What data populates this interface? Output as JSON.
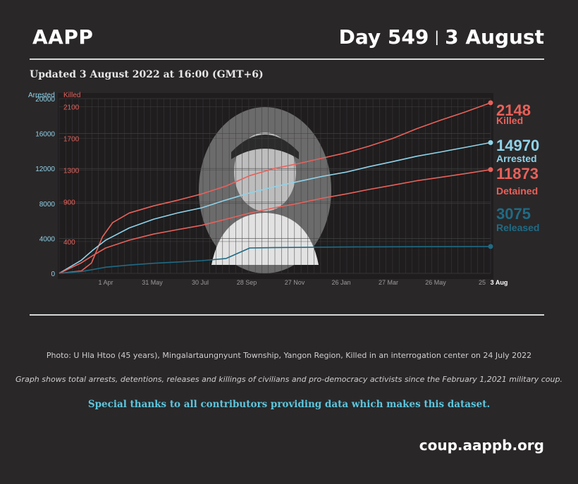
{
  "header": {
    "brand": "AAPP",
    "day": "Day 549",
    "separator": "|",
    "date": "3 August"
  },
  "updated": "Updated 3 August 2022 at 16:00 (GMT+6)",
  "colors": {
    "killed": "#e8615a",
    "arrested": "#8fd3ea",
    "detained": "#e8615a",
    "released": "#1f6b85",
    "background": "#2a2728"
  },
  "chart_data": {
    "type": "line",
    "x_ticks": [
      "1 Apr",
      "31 May",
      "30 Jul",
      "28 Sep",
      "27 Nov",
      "26 Jan",
      "27 Mar",
      "26 May",
      "25",
      "3 Aug"
    ],
    "axis_left": {
      "label": "Arrested",
      "ticks": [
        0,
        4000,
        8000,
        12000,
        16000,
        20000
      ],
      "ylim": [
        0,
        20000
      ]
    },
    "axis_right": {
      "label": "Killed",
      "ticks": [
        400,
        900,
        1300,
        1700,
        2100
      ],
      "ylim": [
        0,
        2200
      ]
    },
    "x_start": "2021-02-01",
    "series": [
      {
        "name": "Killed",
        "axis": "killed",
        "final_value": "2148",
        "label": "Killed",
        "x": [
          "2021-02-01",
          "2021-03-01",
          "2021-03-14",
          "2021-03-28",
          "2021-04-10",
          "2021-05-01",
          "2021-06-01",
          "2021-07-01",
          "2021-08-01",
          "2021-09-01",
          "2021-10-01",
          "2021-11-01",
          "2021-12-01",
          "2022-01-01",
          "2022-02-01",
          "2022-03-01",
          "2022-04-01",
          "2022-05-01",
          "2022-06-01",
          "2022-07-01",
          "2022-08-03"
        ],
        "y": [
          0,
          30,
          130,
          460,
          640,
          760,
          850,
          920,
          1000,
          1100,
          1230,
          1320,
          1380,
          1450,
          1520,
          1600,
          1700,
          1820,
          1930,
          2030,
          2148
        ]
      },
      {
        "name": "Arrested",
        "axis": "arrested",
        "final_value": "14970",
        "label": "Arrested",
        "x": [
          "2021-02-01",
          "2021-03-01",
          "2021-03-15",
          "2021-04-01",
          "2021-05-01",
          "2021-06-01",
          "2021-07-01",
          "2021-08-01",
          "2021-09-01",
          "2021-10-01",
          "2021-11-01",
          "2021-12-01",
          "2022-01-01",
          "2022-02-01",
          "2022-03-01",
          "2022-04-01",
          "2022-05-01",
          "2022-06-01",
          "2022-07-01",
          "2022-08-03"
        ],
        "y": [
          0,
          1500,
          2600,
          3800,
          5200,
          6200,
          6900,
          7500,
          8400,
          9200,
          9900,
          10500,
          11100,
          11600,
          12200,
          12800,
          13400,
          13900,
          14400,
          14970
        ]
      },
      {
        "name": "Detained",
        "axis": "arrested",
        "final_value": "11873",
        "label": "Detained",
        "x": [
          "2021-02-01",
          "2021-03-01",
          "2021-03-15",
          "2021-04-01",
          "2021-05-01",
          "2021-06-01",
          "2021-07-01",
          "2021-08-01",
          "2021-09-01",
          "2021-10-01",
          "2021-11-01",
          "2021-12-01",
          "2022-01-01",
          "2022-02-01",
          "2022-03-01",
          "2022-04-01",
          "2022-05-01",
          "2022-06-01",
          "2022-07-01",
          "2022-08-03"
        ],
        "y": [
          0,
          1200,
          2000,
          2900,
          3800,
          4500,
          5000,
          5500,
          6200,
          6900,
          7500,
          8000,
          8600,
          9100,
          9600,
          10100,
          10600,
          11000,
          11400,
          11873
        ]
      },
      {
        "name": "Released",
        "axis": "arrested",
        "final_value": "3075",
        "label": "Released",
        "x": [
          "2021-02-01",
          "2021-03-01",
          "2021-04-01",
          "2021-05-01",
          "2021-06-01",
          "2021-07-01",
          "2021-08-01",
          "2021-09-01",
          "2021-10-01",
          "2021-11-01",
          "2022-01-01",
          "2022-03-01",
          "2022-05-01",
          "2022-08-03"
        ],
        "y": [
          0,
          200,
          700,
          950,
          1150,
          1300,
          1450,
          1700,
          2900,
          2950,
          3000,
          3030,
          3050,
          3075
        ]
      }
    ]
  },
  "footer": {
    "photo_credit": "Photo: U Hla Htoo (45 years), Mingalartaungnyunt Township, Yangon Region, Killed in an interrogation center on 24 July 2022",
    "graph_note": "Graph shows total arrests, detentions, releases and killings of civilians and pro-democracy activists since the February 1,2021 military coup.",
    "thanks": "Special thanks to all contributors providing data which makes this dataset.",
    "site": "coup.aappb.org"
  }
}
